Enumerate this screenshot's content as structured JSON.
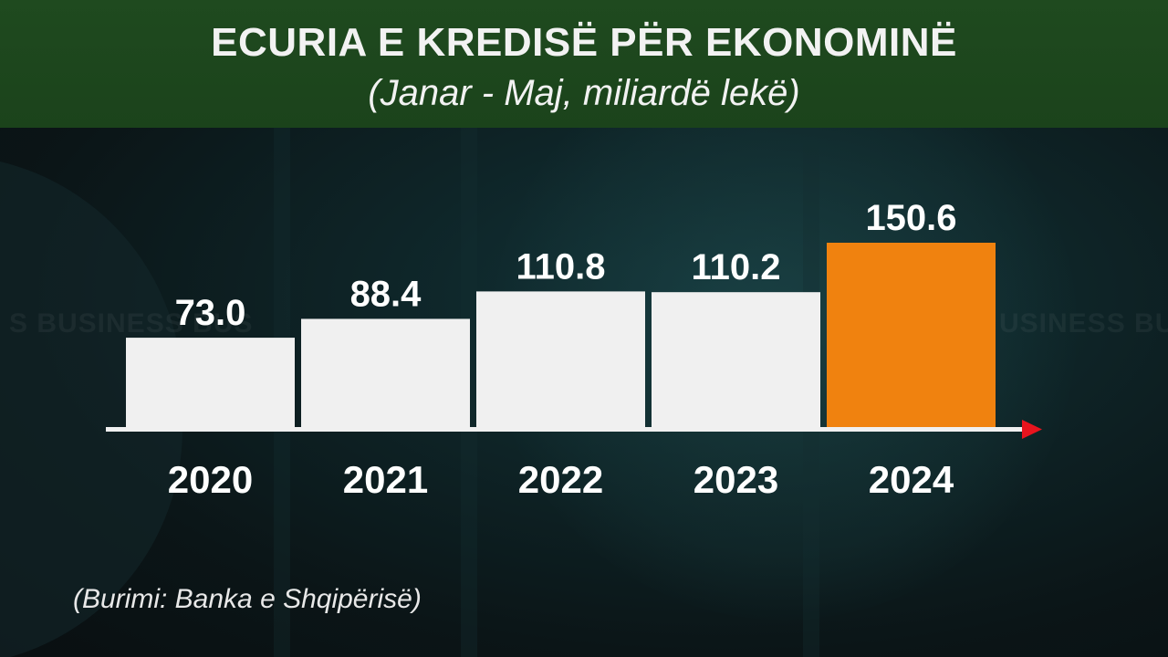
{
  "header": {
    "title": "ECURIA E KREDISË PËR EKONOMINË",
    "subtitle": "(Janar - Maj,  miliardë lekë)"
  },
  "background": {
    "watermark_left": "S BUSINESS BUS",
    "watermark_right": "USINESS BUSI"
  },
  "footer": {
    "source": "(Burimi: Banka e Shqipërisë)"
  },
  "colors": {
    "bar_default": "#f0f0f0",
    "bar_highlight": "#f0820f",
    "axis_arrow": "#e8141e",
    "axis_line": "#f0f0f0",
    "header_bg": "#1d461d"
  },
  "chart_data": {
    "type": "bar",
    "categories": [
      "2020",
      "2021",
      "2022",
      "2023",
      "2024"
    ],
    "values": [
      73.0,
      88.4,
      110.8,
      110.2,
      150.6
    ],
    "value_labels": [
      "73.0",
      "88.4",
      "110.8",
      "110.2",
      "150.6"
    ],
    "highlight_index": 4,
    "title": "ECURIA E KREDISË PËR EKONOMINË",
    "subtitle": "(Janar - Maj,  miliardë lekë)",
    "ylim": [
      0,
      150.6
    ],
    "grid": false,
    "legend": "none"
  }
}
